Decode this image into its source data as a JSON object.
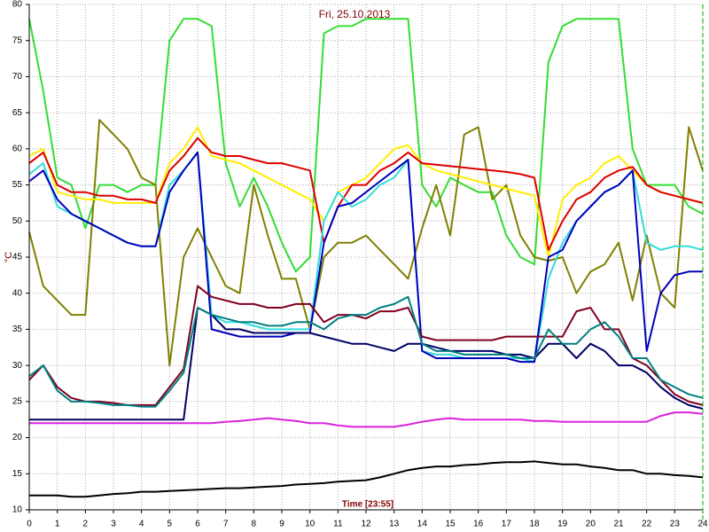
{
  "chart_data": {
    "type": "line",
    "title": "Fri, 25.10.2013",
    "x_label": "Time [23:55]",
    "y_label": "°C",
    "x": [
      0,
      0.5,
      1,
      1.5,
      2,
      2.5,
      3,
      3.5,
      4,
      4.5,
      5,
      5.5,
      6,
      6.5,
      7,
      7.5,
      8,
      8.5,
      9,
      9.5,
      10,
      10.5,
      11,
      11.5,
      12,
      12.5,
      13,
      13.5,
      14,
      14.5,
      15,
      15.5,
      16,
      16.5,
      17,
      17.5,
      18,
      18.5,
      19,
      19.5,
      20,
      20.5,
      21,
      21.5,
      22,
      22.5,
      23,
      23.5,
      24
    ],
    "xlim": [
      0,
      24
    ],
    "xticks": [
      0,
      1,
      2,
      3,
      4,
      5,
      6,
      7,
      8,
      9,
      10,
      11,
      12,
      13,
      14,
      15,
      16,
      17,
      18,
      19,
      20,
      21,
      22,
      23,
      24
    ],
    "ylim": [
      10,
      80
    ],
    "yticks": [
      10,
      15,
      20,
      25,
      30,
      35,
      40,
      45,
      50,
      55,
      60,
      65,
      70,
      75,
      80
    ],
    "grid": true,
    "series": [
      {
        "color": "#33dd33",
        "values": [
          78,
          68,
          56,
          55,
          49,
          55,
          55,
          54,
          55,
          55,
          75,
          78,
          78,
          77,
          58,
          52,
          56,
          52,
          47,
          43,
          45,
          76,
          77,
          77,
          78,
          78,
          78,
          78,
          55,
          52,
          56,
          55,
          54,
          54,
          48,
          45,
          44,
          72,
          77,
          78,
          78,
          78,
          78,
          60,
          55,
          55,
          55,
          52,
          51
        ]
      },
      {
        "color": "#808000",
        "values": [
          48.5,
          41,
          39,
          37,
          37,
          64,
          62,
          60,
          56,
          55,
          30,
          45,
          49,
          45,
          41,
          40,
          55,
          48,
          42,
          42,
          35,
          45,
          47,
          47,
          48,
          46,
          44,
          42,
          49,
          55,
          48,
          62,
          63,
          53,
          55,
          48,
          45,
          44.5,
          45,
          40,
          43,
          44,
          47,
          39,
          48,
          40,
          38,
          63,
          57
        ]
      },
      {
        "color": "#ffee00",
        "values": [
          59,
          60,
          54,
          53.5,
          53,
          53,
          52.5,
          52.5,
          52.5,
          52.5,
          58,
          60,
          63,
          59,
          58.5,
          58,
          57,
          56,
          55,
          54,
          53,
          50,
          54,
          55,
          56,
          58,
          60,
          60.5,
          58,
          57,
          56.5,
          56,
          55.5,
          55,
          54.5,
          54,
          53.5,
          45,
          53,
          55,
          56,
          58,
          59,
          57,
          55,
          54,
          53.5,
          53,
          52.5
        ]
      },
      {
        "color": "#dd0000",
        "values": [
          58,
          59.5,
          55,
          54,
          54,
          53.5,
          53.5,
          53,
          53,
          52.5,
          57,
          59,
          61.5,
          59.5,
          59,
          59,
          58.5,
          58,
          58,
          57.5,
          57,
          47,
          52,
          55,
          55,
          57,
          58,
          59.5,
          58,
          57.8,
          57.6,
          57.4,
          57.2,
          57,
          56.8,
          56.5,
          56,
          46,
          50,
          53,
          54,
          56,
          57,
          57.5,
          55,
          54,
          53.5,
          53,
          52.5
        ]
      },
      {
        "color": "#33dddd",
        "values": [
          56.5,
          58,
          52,
          51,
          50,
          49,
          48,
          47,
          46.5,
          46.5,
          55,
          57,
          59.5,
          37,
          36,
          36,
          35.5,
          35,
          35,
          35,
          35,
          50,
          54,
          52,
          53,
          55,
          56,
          58.5,
          32,
          31.5,
          31.5,
          31,
          31,
          31,
          31,
          31,
          30.5,
          42,
          47,
          50,
          52,
          54,
          55,
          57,
          47,
          46,
          46.5,
          46.5,
          46
        ]
      },
      {
        "color": "#0000bb",
        "values": [
          55.5,
          57,
          53,
          51,
          50,
          49,
          48,
          47,
          46.5,
          46.5,
          54,
          57,
          59.5,
          35,
          34.5,
          34,
          34,
          34,
          34,
          34.5,
          34.5,
          47,
          52,
          52.5,
          54,
          55.5,
          57,
          58.5,
          32,
          31,
          31,
          31,
          31,
          31,
          31,
          30.5,
          30.5,
          45,
          46,
          50,
          52,
          54,
          55,
          57,
          32,
          40,
          42.5,
          43,
          43
        ]
      },
      {
        "color": "#000066",
        "values": [
          22.5,
          22.5,
          22.5,
          22.5,
          22.5,
          22.5,
          22.5,
          22.5,
          22.5,
          22.5,
          22.5,
          22.5,
          38,
          37,
          35,
          35,
          34.5,
          34.5,
          34.5,
          34.5,
          34.5,
          34,
          33.5,
          33,
          33,
          32.5,
          32,
          33,
          33,
          32.5,
          32,
          32,
          32,
          32,
          31.5,
          31.5,
          31,
          33,
          33,
          31,
          33,
          32,
          30,
          30,
          29,
          27,
          25.5,
          24.5,
          24
        ]
      },
      {
        "color": "#800020",
        "values": [
          28,
          30,
          27,
          25.5,
          25,
          25,
          24.8,
          24.5,
          24.5,
          24.5,
          27,
          29.5,
          41,
          39.5,
          39,
          38.5,
          38.5,
          38,
          38,
          38.5,
          38.5,
          36,
          37,
          37,
          36.5,
          37.5,
          37.5,
          38,
          34,
          33.5,
          33.5,
          33.5,
          33.5,
          33.5,
          34,
          34,
          34,
          34,
          34,
          37.5,
          38,
          35,
          35,
          31,
          30,
          28,
          26,
          25,
          24.5
        ]
      },
      {
        "color": "#008080",
        "values": [
          28.5,
          30,
          26.5,
          25,
          25,
          24.8,
          24.5,
          24.5,
          24.3,
          24.3,
          26.5,
          29,
          38,
          37,
          36.5,
          36,
          36,
          35.5,
          35.5,
          36,
          36,
          35,
          36.5,
          37,
          37,
          38,
          38.5,
          39.5,
          33,
          32,
          32,
          31.5,
          31.5,
          31.5,
          31.5,
          31,
          31,
          35,
          33,
          33,
          35,
          36,
          34,
          31,
          31,
          28,
          27,
          26,
          25.5
        ]
      },
      {
        "color": "#dd22dd",
        "values": [
          22,
          22,
          22,
          22,
          22,
          22,
          22,
          22,
          22,
          22,
          22,
          22,
          22,
          22,
          22.2,
          22.3,
          22.5,
          22.7,
          22.5,
          22.3,
          22,
          22,
          21.7,
          21.5,
          21.5,
          21.5,
          21.5,
          21.8,
          22.2,
          22.5,
          22.7,
          22.5,
          22.5,
          22.5,
          22.5,
          22.5,
          22.3,
          22.3,
          22.2,
          22.2,
          22.2,
          22.2,
          22.2,
          22.2,
          22.2,
          23,
          23.5,
          23.5,
          23.3
        ]
      },
      {
        "color": "#000000",
        "values": [
          12,
          12,
          12,
          11.8,
          11.8,
          12,
          12.2,
          12.3,
          12.5,
          12.5,
          12.6,
          12.7,
          12.8,
          12.9,
          13,
          13,
          13.1,
          13.2,
          13.3,
          13.5,
          13.6,
          13.7,
          13.9,
          14,
          14.1,
          14.5,
          15,
          15.5,
          15.8,
          16,
          16,
          16.2,
          16.3,
          16.5,
          16.6,
          16.6,
          16.7,
          16.5,
          16.3,
          16.3,
          16,
          15.8,
          15.5,
          15.5,
          15,
          15,
          14.8,
          14.7,
          14.5
        ]
      }
    ]
  }
}
